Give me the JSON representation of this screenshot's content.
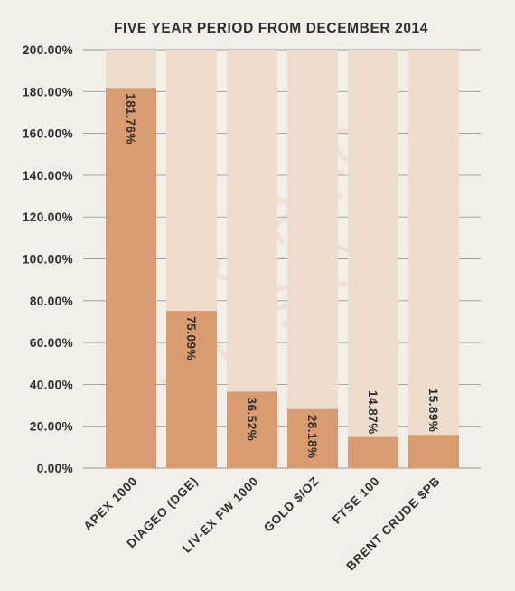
{
  "colors": {
    "background": "#f2efe9",
    "bar": "#d99b70",
    "bar_track": "#eedccd",
    "grid": "#9a9a9a",
    "text": "#2f2f2f",
    "watermark": "#e9d6c6"
  },
  "watermark": {
    "line1": "RARE",
    "line2": "WHISKY",
    "line3": "101"
  },
  "chart_data": {
    "type": "bar",
    "title": "FIVE YEAR PERIOD FROM DECEMBER 2014",
    "xlabel": "",
    "ylabel": "",
    "categories": [
      "APEX 1000",
      "DIAGEO (DGE)",
      "LIV-EX FW 1000",
      "GOLD $/OZ",
      "FTSE 100",
      "BRENT CRUDE $PB"
    ],
    "values": [
      181.76,
      75.09,
      36.52,
      28.18,
      14.87,
      15.89
    ],
    "data_labels": [
      "181.76%",
      "75.09%",
      "36.52%",
      "28.18%",
      "14.87%",
      "15.89%"
    ],
    "ylim": [
      0,
      200
    ],
    "yticks": [
      0,
      20,
      40,
      60,
      80,
      100,
      120,
      140,
      160,
      180,
      200
    ],
    "ytick_labels": [
      "0.00%",
      "20.00%",
      "40.00%",
      "60.00%",
      "80.00%",
      "100.00%",
      "120.00%",
      "140.00%",
      "160.00%",
      "180.00%",
      "200.00%"
    ],
    "grid": true,
    "legend": "none"
  }
}
